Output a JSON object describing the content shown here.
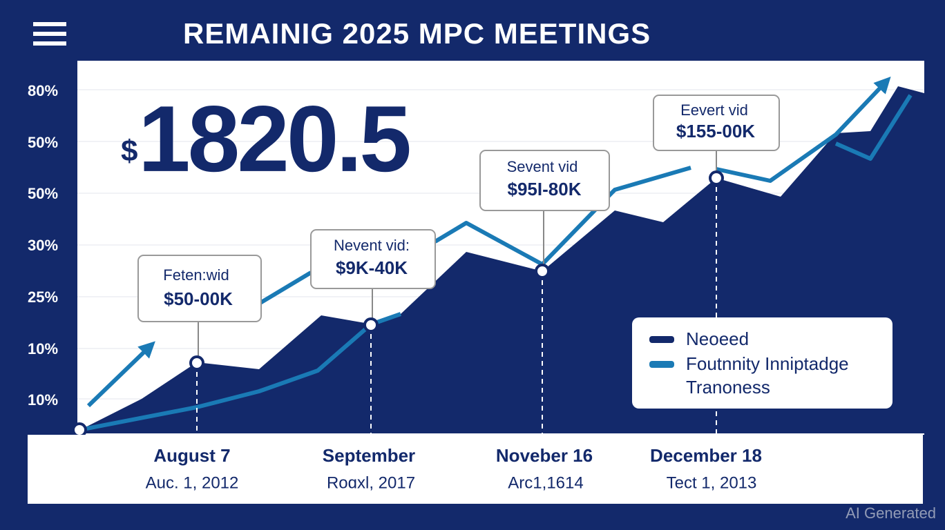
{
  "header": {
    "title": "REMAINIG 2025 MPC MEETINGS"
  },
  "headline": {
    "currency": "$",
    "number": "1820.5"
  },
  "y_labels": [
    "80%",
    "50%",
    "50%",
    "30%",
    "25%",
    "10%",
    "10%"
  ],
  "callouts": [
    {
      "label": "Feten:wid",
      "value": "$50-00K"
    },
    {
      "label": "Nevent vid:",
      "value": "$9K-40K"
    },
    {
      "label": "Sevent vid",
      "value": "$95I-80K"
    },
    {
      "label": "Eevert vid",
      "value": "$155-00K"
    }
  ],
  "legend": [
    {
      "lines": [
        "Neoeed"
      ]
    },
    {
      "lines": [
        "Foutnnity Inniptadge",
        "Tranoness"
      ]
    }
  ],
  "x_labels": [
    {
      "main": "August 7",
      "sub": "Auc. 1, 2012"
    },
    {
      "main": "September",
      "sub": "Roɑxl, 2017"
    },
    {
      "main": "Noveber 16",
      "sub": "Arc1,1614"
    },
    {
      "main": "December 18",
      "sub": "Tect 1, 2013"
    }
  ],
  "watermark": "AI Generated"
}
